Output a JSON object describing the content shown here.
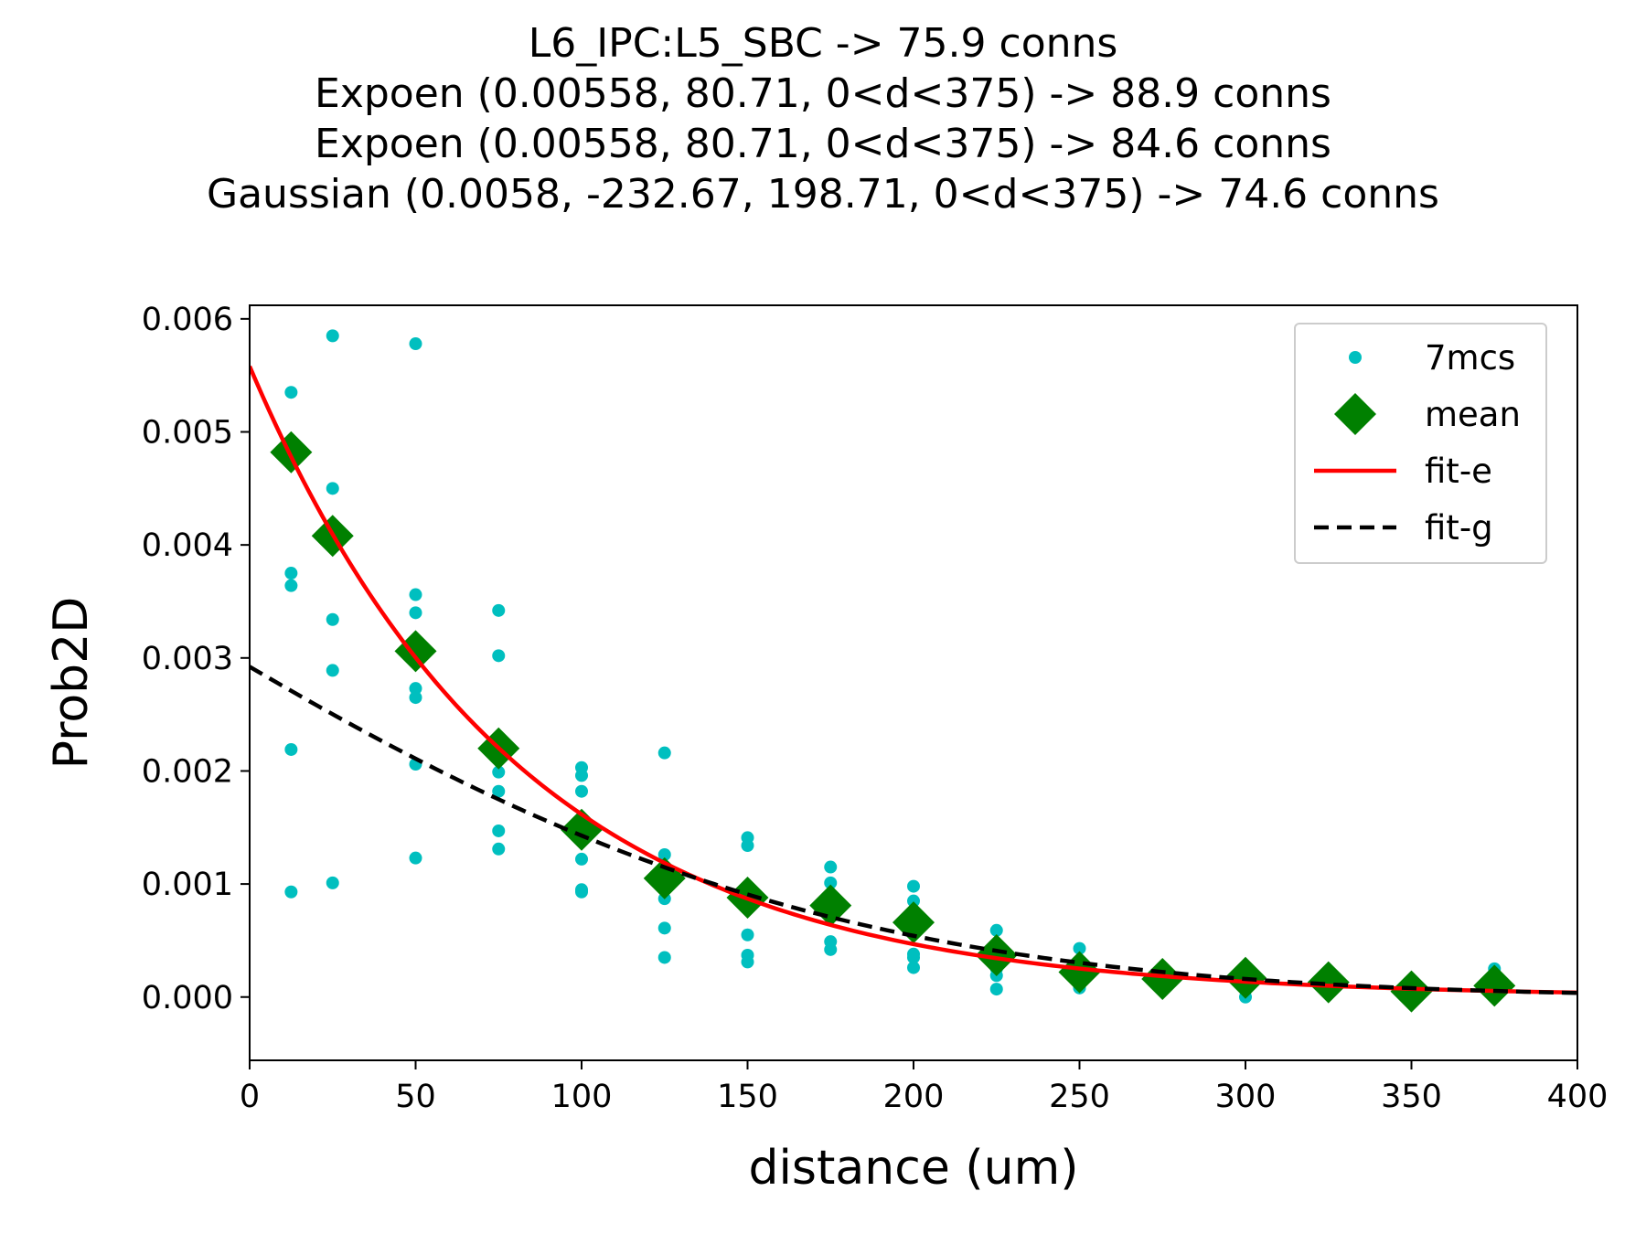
{
  "chart_data": {
    "type": "scatter",
    "title_lines": [
      "L6_IPC:L5_SBC -> 75.9 conns",
      "Expoen (0.00558, 80.71, 0<d<375) -> 88.9 conns",
      "Expoen (0.00558, 80.71, 0<d<375) -> 84.6 conns",
      "Gaussian (0.0058, -232.67, 198.71, 0<d<375) -> 74.6 conns"
    ],
    "xlabel": "distance (um)",
    "ylabel": "Prob2D",
    "xlim": [
      0,
      400
    ],
    "ylim": [
      -0.00056,
      0.00612
    ],
    "x_ticks": [
      0,
      50,
      100,
      150,
      200,
      250,
      300,
      350,
      400
    ],
    "x_tick_labels": [
      "0",
      "50",
      "100",
      "150",
      "200",
      "250",
      "300",
      "350",
      "400"
    ],
    "y_ticks": [
      0.0,
      0.001,
      0.002,
      0.003,
      0.004,
      0.005,
      0.006
    ],
    "y_tick_labels": [
      "0.000",
      "0.001",
      "0.002",
      "0.003",
      "0.004",
      "0.005",
      "0.006"
    ],
    "grid": false,
    "legend_position": "top-right",
    "legend": [
      {
        "label": "7mcs",
        "kind": "dot",
        "color": "#00bfbf"
      },
      {
        "label": "mean",
        "kind": "diamond",
        "color": "#008000"
      },
      {
        "label": "fit-e",
        "kind": "line",
        "color": "#ff0000"
      },
      {
        "label": "fit-g",
        "kind": "dashed",
        "color": "#000000"
      }
    ],
    "series": [
      {
        "name": "7mcs",
        "kind": "dot",
        "color": "#00bfbf",
        "points": [
          [
            12.5,
            0.00535
          ],
          [
            12.5,
            0.00375
          ],
          [
            12.5,
            0.00364
          ],
          [
            12.5,
            0.00219
          ],
          [
            12.5,
            0.00093
          ],
          [
            25,
            0.00585
          ],
          [
            25,
            0.0045
          ],
          [
            25,
            0.00334
          ],
          [
            25,
            0.00289
          ],
          [
            25,
            0.00101
          ],
          [
            50,
            0.00578
          ],
          [
            50,
            0.00356
          ],
          [
            50,
            0.0034
          ],
          [
            50,
            0.00273
          ],
          [
            50,
            0.00265
          ],
          [
            50,
            0.00206
          ],
          [
            50,
            0.00123
          ],
          [
            75,
            0.00342
          ],
          [
            75,
            0.00302
          ],
          [
            75,
            0.00199
          ],
          [
            75,
            0.00182
          ],
          [
            75,
            0.00147
          ],
          [
            75,
            0.00131
          ],
          [
            100,
            0.00203
          ],
          [
            100,
            0.00196
          ],
          [
            100,
            0.00182
          ],
          [
            100,
            0.00122
          ],
          [
            100,
            0.00093
          ],
          [
            100,
            0.00095
          ],
          [
            125,
            0.00216
          ],
          [
            125,
            0.00126
          ],
          [
            125,
            0.00087
          ],
          [
            125,
            0.00061
          ],
          [
            125,
            0.00035
          ],
          [
            150,
            0.00141
          ],
          [
            150,
            0.00134
          ],
          [
            150,
            0.00055
          ],
          [
            150,
            0.00037
          ],
          [
            150,
            0.00031
          ],
          [
            175,
            0.00115
          ],
          [
            175,
            0.00101
          ],
          [
            175,
            0.00049
          ],
          [
            175,
            0.00042
          ],
          [
            200,
            0.00098
          ],
          [
            200,
            0.00085
          ],
          [
            200,
            0.00038
          ],
          [
            200,
            0.00035
          ],
          [
            200,
            0.00026
          ],
          [
            225,
            0.00059
          ],
          [
            225,
            0.00025
          ],
          [
            225,
            0.00019
          ],
          [
            225,
            7e-05
          ],
          [
            250,
            0.00043
          ],
          [
            250,
            0.00024
          ],
          [
            250,
            0.00016
          ],
          [
            250,
            8e-05
          ],
          [
            275,
            0.00023
          ],
          [
            275,
            0.00015
          ],
          [
            300,
            0.00021
          ],
          [
            300,
            6e-05
          ],
          [
            300,
            0.0
          ],
          [
            325,
            0.00013
          ],
          [
            325,
            9e-05
          ],
          [
            350,
            3e-05
          ],
          [
            350,
            1e-05
          ],
          [
            375,
            0.00025
          ],
          [
            375,
            0.00012
          ]
        ]
      },
      {
        "name": "mean",
        "kind": "diamond",
        "color": "#008000",
        "points": [
          [
            12.5,
            0.00482
          ],
          [
            25,
            0.00408
          ],
          [
            50,
            0.00306
          ],
          [
            75,
            0.0022
          ],
          [
            100,
            0.00148
          ],
          [
            125,
            0.00105
          ],
          [
            150,
            0.00088
          ],
          [
            175,
            0.00081
          ],
          [
            200,
            0.00066
          ],
          [
            225,
            0.00037
          ],
          [
            250,
            0.00022
          ],
          [
            275,
            0.00016
          ],
          [
            300,
            0.00017
          ],
          [
            325,
            0.00013
          ],
          [
            350,
            5e-05
          ],
          [
            375,
            0.0001
          ]
        ]
      }
    ],
    "fits": [
      {
        "name": "fit-e",
        "kind": "line",
        "color": "#ff0000",
        "model": "exponential",
        "params": {
          "a": 0.00558,
          "lambda": 80.71
        },
        "domain": [
          0,
          400
        ]
      },
      {
        "name": "fit-g",
        "kind": "dashed",
        "color": "#000000",
        "model": "gaussian",
        "params": {
          "a": 0.0058,
          "mu": -232.67,
          "sigma": 198.71
        },
        "domain": [
          0,
          400
        ]
      }
    ]
  }
}
